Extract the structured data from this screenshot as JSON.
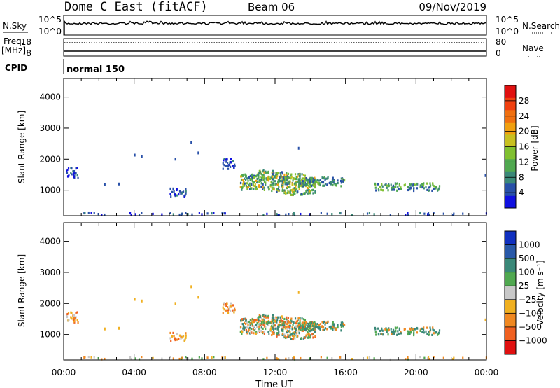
{
  "header": {
    "station": "Dome C East (fitACF)",
    "beam": "Beam 06",
    "date": "09/Nov/2019"
  },
  "param_panels": {
    "nsky_label": "N.Sky",
    "nsearch_label": "N.Search",
    "freq_label_1": "Freq.",
    "freq_label_2": "[MHz]",
    "nave_label": "Nave",
    "cpid_label": "CPID",
    "cpid_text": "normal 150",
    "noise_ticks": [
      "10^5",
      "10^0"
    ],
    "freq_ticks": [
      "18",
      "8"
    ],
    "nave_ticks": [
      "80",
      "0"
    ]
  },
  "chart_data": [
    {
      "type": "heatmap",
      "name": "power",
      "ylabel": "Slant Range [km]",
      "xlabel": "",
      "ylim": [
        180,
        4600
      ],
      "yticks": [
        "1000",
        "2000",
        "3000",
        "4000"
      ],
      "colorbar": {
        "label": "Power [dB]",
        "ticks": [
          "4",
          "8",
          "12",
          "16",
          "20",
          "24",
          "28"
        ],
        "range": [
          0,
          32
        ],
        "colors": [
          "#1010e0",
          "#2850a8",
          "#3a8878",
          "#50a850",
          "#80c030",
          "#c8c020",
          "#f0a010",
          "#f07010",
          "#f04010",
          "#e01010"
        ]
      }
    },
    {
      "type": "heatmap",
      "name": "velocity",
      "ylabel": "Slant Range [km]",
      "xlabel": "Time UT",
      "ylim": [
        180,
        4600
      ],
      "yticks": [
        "1000",
        "2000",
        "3000",
        "4000"
      ],
      "colorbar": {
        "label": "Velocity [m s⁻¹]",
        "ticks": [
          "1000",
          "500",
          "100",
          "25",
          "−25",
          "−100",
          "−500",
          "−1000"
        ],
        "colors": [
          "#1030c0",
          "#2858a8",
          "#3a8878",
          "#50a850",
          "#c8c8c8",
          "#f0b020",
          "#f08820",
          "#f06020",
          "#e01010"
        ]
      },
      "xticks": [
        "00:00",
        "04:00",
        "08:00",
        "12:00",
        "16:00",
        "20:00",
        "00:00"
      ],
      "xlim_hours": [
        0,
        24
      ]
    }
  ],
  "scatter_regions": [
    {
      "t0": 10.0,
      "t1": 14.3,
      "r0": 860,
      "r1": 1520,
      "tone": "main"
    },
    {
      "t0": 11.0,
      "t1": 13.8,
      "r0": 1200,
      "r1": 1660,
      "tone": "main"
    },
    {
      "t0": 13.5,
      "t1": 16.0,
      "r0": 1130,
      "r1": 1420,
      "tone": "tail"
    },
    {
      "t0": 17.6,
      "t1": 21.3,
      "r0": 980,
      "r1": 1220,
      "tone": "tail"
    },
    {
      "t0": 0.1,
      "t1": 0.8,
      "r0": 1380,
      "r1": 1720,
      "tone": "edge"
    },
    {
      "t0": 6.0,
      "t1": 6.9,
      "r0": 790,
      "r1": 1060,
      "tone": "edge"
    },
    {
      "t0": 9.0,
      "t1": 9.7,
      "r0": 1680,
      "r1": 2010,
      "tone": "edge"
    },
    {
      "t0": 0.0,
      "t1": 24.0,
      "r0": 190,
      "r1": 280,
      "tone": "sparse"
    }
  ]
}
